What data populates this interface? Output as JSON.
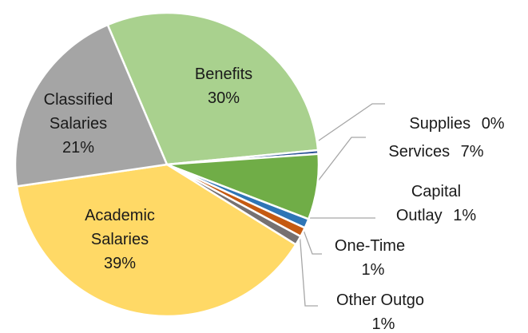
{
  "chart_data": {
    "type": "pie",
    "categories": [
      "Benefits",
      "Supplies",
      "Services",
      "Capital Outlay",
      "One-Time",
      "Other Outgo",
      "Academic Salaries",
      "Classified Salaries"
    ],
    "values": [
      30,
      0.4,
      7,
      1,
      1,
      1,
      39,
      21
    ],
    "value_labels": [
      "30%",
      "0%",
      "7%",
      "1%",
      "1%",
      "1%",
      "39%",
      "21%"
    ],
    "colors": [
      "#a9d18e",
      "#2f5597",
      "#70ad47",
      "#2e75b6",
      "#c55a11",
      "#767171",
      "#ffd966",
      "#a5a5a5"
    ]
  }
}
